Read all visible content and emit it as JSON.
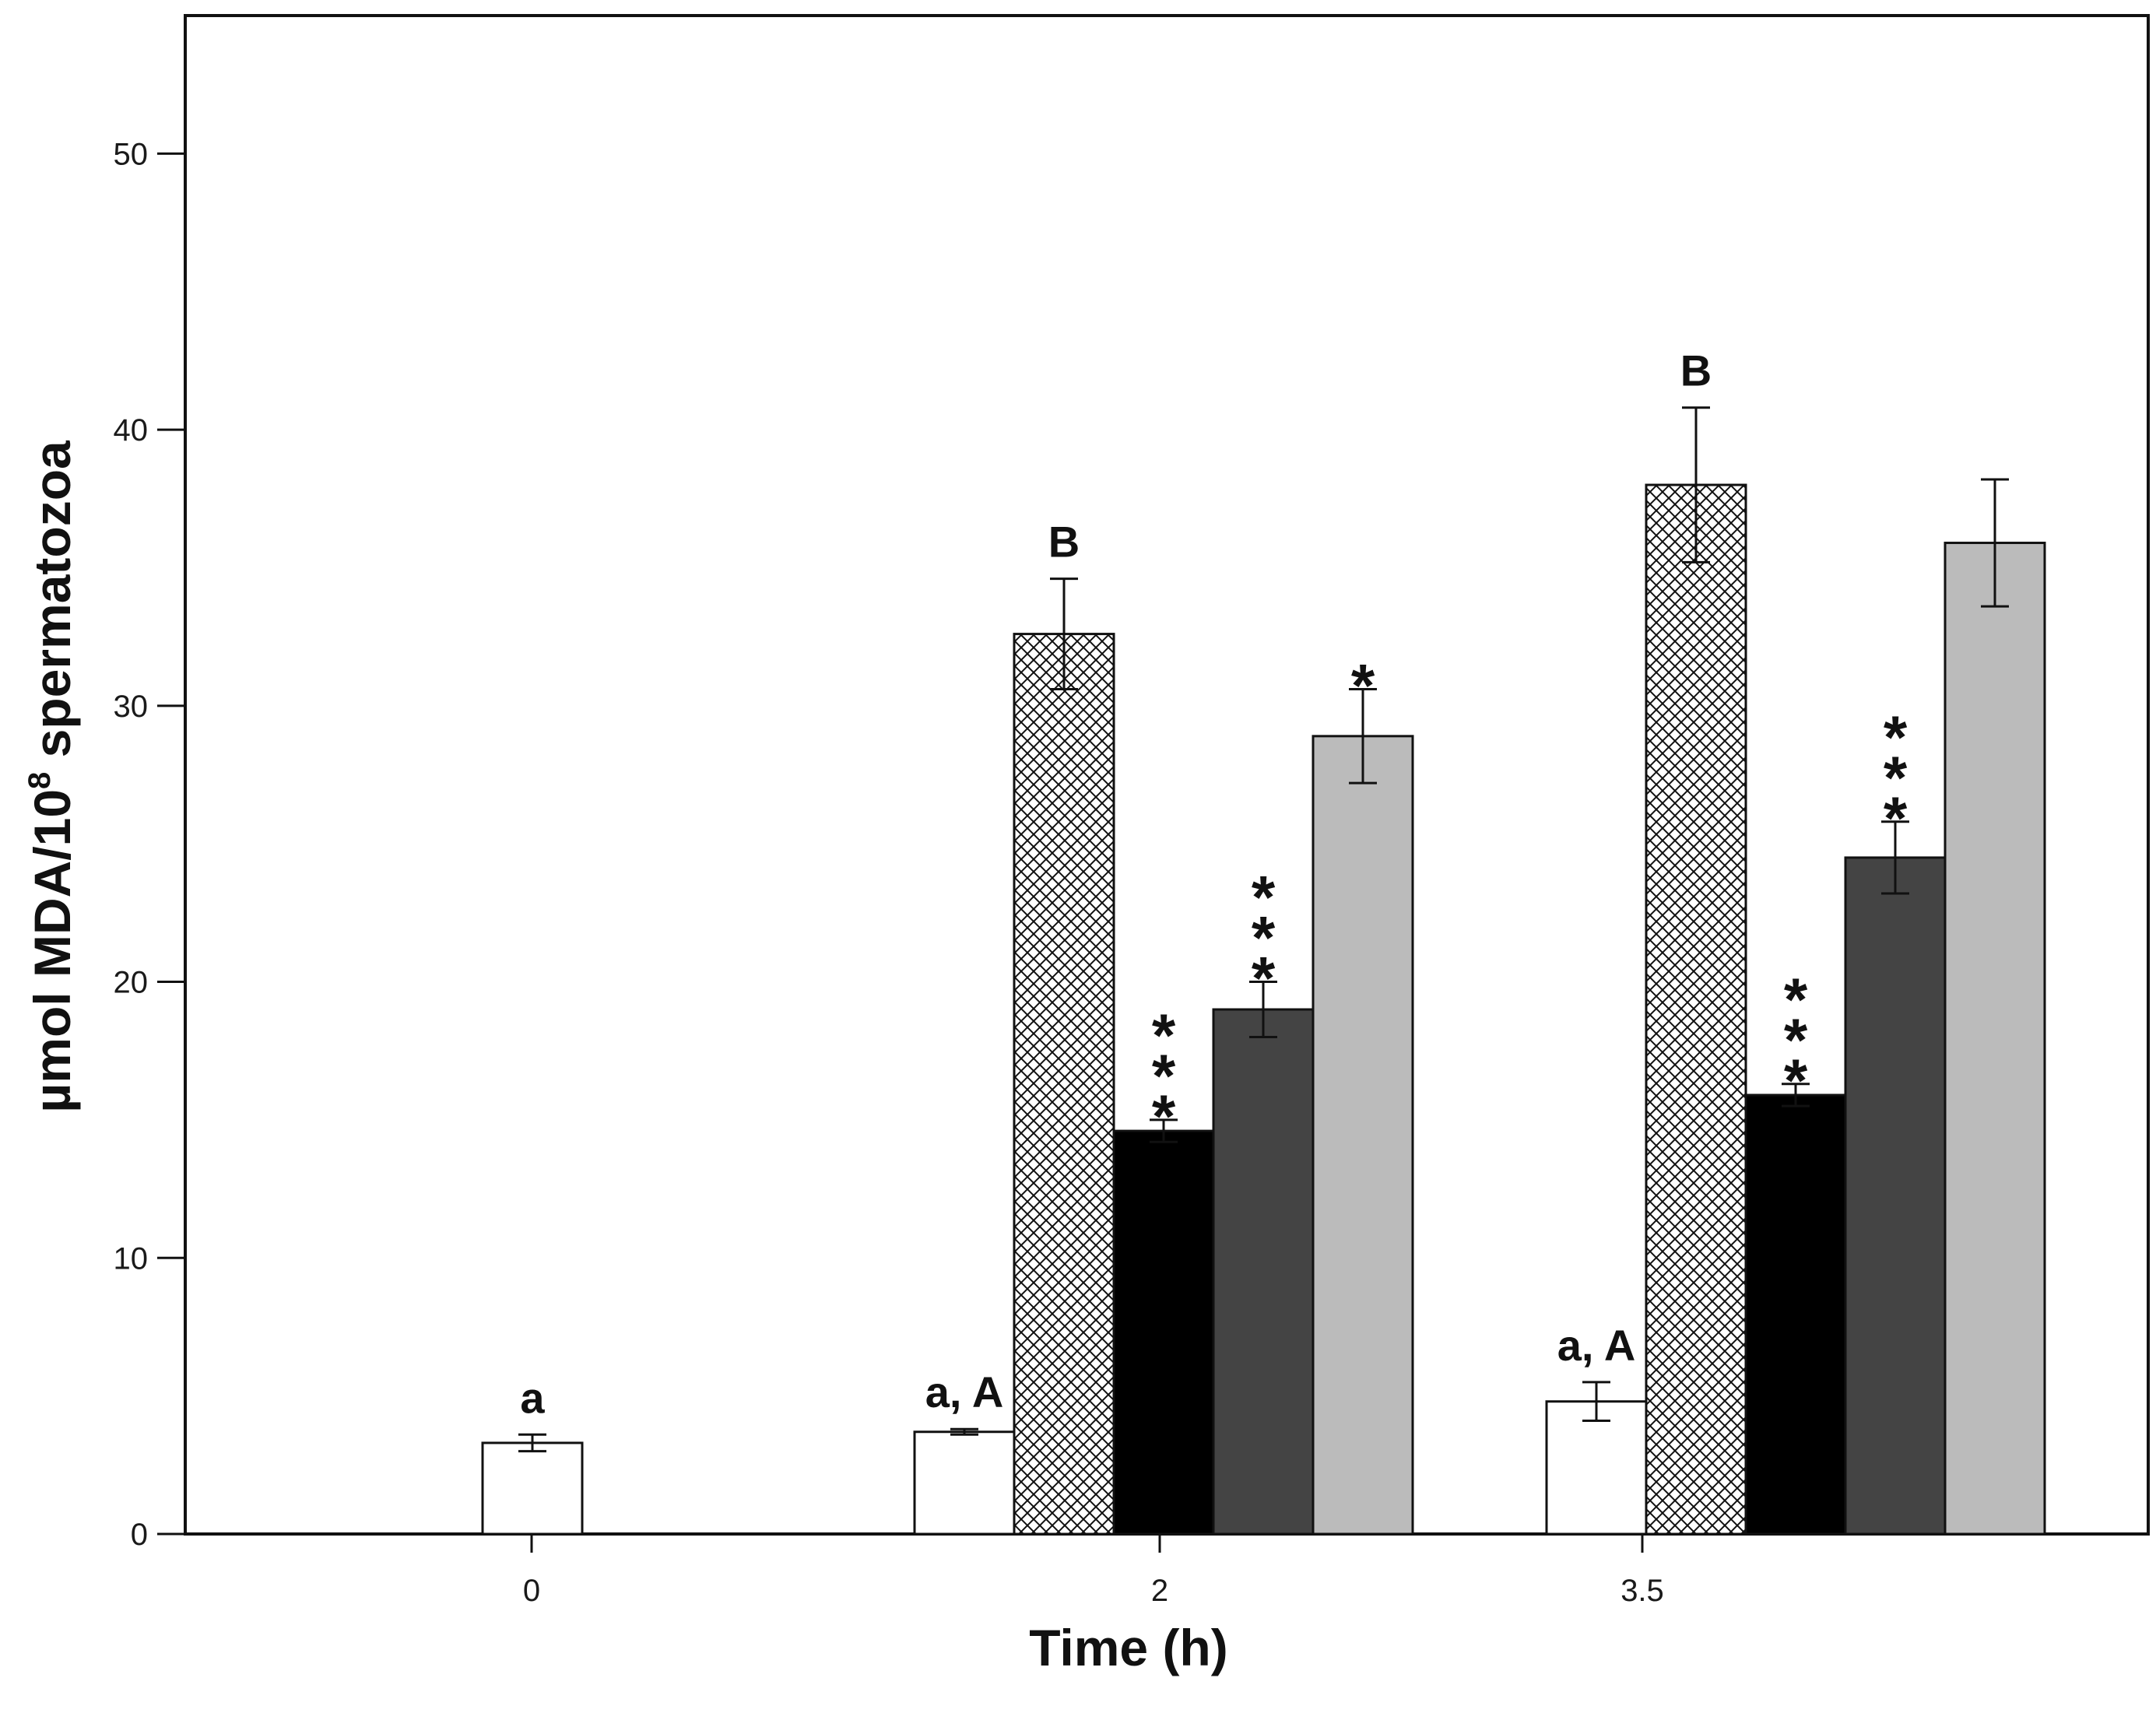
{
  "chart_data": {
    "type": "bar",
    "title": "",
    "xlabel": "Time (h)",
    "ylabel": "µmol MDA/10⁸ spermatozoa",
    "ylabel_main": "µmol MDA/10",
    "ylabel_sup": "8",
    "ylabel_tail": " spermatozoa",
    "ylim": [
      0,
      55
    ],
    "yticks": [
      "0",
      "10",
      "20",
      "30",
      "40",
      "50"
    ],
    "categories": [
      "0",
      "2",
      "3.5"
    ],
    "grid": false,
    "legend": "none",
    "colors": {
      "white": "#ffffff",
      "crosshatch": "#ffffff",
      "black": "#000000",
      "darkgray": "#444444",
      "lightgray": "#bbbbbb",
      "edge": "#111111"
    },
    "series": [
      {
        "name": "white",
        "fill": "white",
        "values": [
          3.3,
          3.7,
          4.8
        ],
        "errors": [
          0.3,
          0.1,
          0.7
        ],
        "labels": [
          "a",
          "a, A",
          "a, A"
        ]
      },
      {
        "name": "crosshatch",
        "fill": "hatch",
        "values": [
          null,
          32.6,
          38.0
        ],
        "errors": [
          null,
          2.0,
          2.8
        ],
        "labels": [
          "",
          "B",
          "B"
        ]
      },
      {
        "name": "black",
        "fill": "black",
        "values": [
          null,
          14.6,
          15.9
        ],
        "errors": [
          null,
          0.4,
          0.4
        ],
        "labels": [
          "",
          "***",
          "***"
        ]
      },
      {
        "name": "darkgray",
        "fill": "darkgray",
        "values": [
          null,
          19.0,
          24.5
        ],
        "errors": [
          null,
          1.0,
          1.3
        ],
        "labels": [
          "",
          "***",
          "***"
        ]
      },
      {
        "name": "lightgray",
        "fill": "lightgray",
        "values": [
          null,
          28.9,
          35.9
        ],
        "errors": [
          null,
          1.7,
          2.3
        ],
        "labels": [
          "",
          "*",
          ""
        ]
      }
    ]
  }
}
